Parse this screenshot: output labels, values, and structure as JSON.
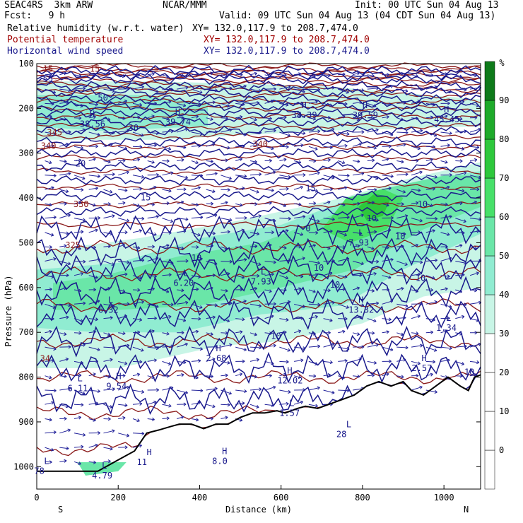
{
  "header": {
    "model": "SEAC4RS  3km ARW",
    "org": "NCAR/MMM",
    "init": "Init: 00 UTC Sun 04 Aug 13",
    "fcst": "Fcst:   9 h",
    "valid": "Valid: 09 UTC Sun 04 Aug 13 (04 CDT Sun 04 Aug 13)"
  },
  "fields": [
    {
      "name": "Relative humidity (w.r.t. water)",
      "xy": "XY= 132.0,117.9 to 208.7,474.0",
      "color": "#000000"
    },
    {
      "name": "Potential temperature",
      "xy": "XY= 132.0,117.9 to 208.7,474.0",
      "color": "#a00000"
    },
    {
      "name": "Horizontal wind speed",
      "xy": "XY= 132.0,117.9 to 208.7,474.0",
      "color": "#1a1a8c"
    }
  ],
  "chart_data": {
    "type": "heatmap",
    "xlabel": "Distance (km)",
    "ylabel": "Pressure (hPa)",
    "xlim": [
      0,
      1090
    ],
    "ylim": [
      1050,
      100
    ],
    "x_ticks": [
      0,
      200,
      400,
      600,
      800,
      1000
    ],
    "y_ticks": [
      100,
      200,
      300,
      400,
      500,
      600,
      700,
      800,
      900,
      1000
    ],
    "x_end_labels": {
      "left": "S",
      "right": "N"
    },
    "colorbar": {
      "unit": "%",
      "levels": [
        0,
        10,
        20,
        30,
        40,
        50,
        60,
        70,
        80,
        90
      ],
      "colors": [
        "#ffffff",
        "#ffffff",
        "#ffffff",
        "#ffffff",
        "#c8f5e6",
        "#90ecd1",
        "#6ae6a8",
        "#47e069",
        "#2ec83c",
        "#1eaa2a",
        "#0e7a1a"
      ]
    },
    "theta_labels": [
      {
        "text": "345",
        "x": 25,
        "p": 260
      },
      {
        "text": "340",
        "x": 10,
        "p": 290
      },
      {
        "text": "340",
        "x": 530,
        "p": 286
      },
      {
        "text": "330",
        "x": 90,
        "p": 420
      },
      {
        "text": "325",
        "x": 70,
        "p": 512
      },
      {
        "text": "34",
        "x": 8,
        "p": 765
      },
      {
        "text": "15",
        "x": 15,
        "p": 118
      },
      {
        "text": "15",
        "x": 130,
        "p": 118
      }
    ],
    "wind_labels": [
      {
        "text": "55",
        "x": 15,
        "p": 140
      },
      {
        "text": "50",
        "x": 150,
        "p": 183
      },
      {
        "text": "30",
        "x": 225,
        "p": 250
      },
      {
        "text": "20",
        "x": 95,
        "p": 330
      },
      {
        "text": "15",
        "x": 255,
        "p": 405
      },
      {
        "text": "15",
        "x": 660,
        "p": 385
      },
      {
        "text": "10",
        "x": 935,
        "p": 420
      },
      {
        "text": "10",
        "x": 810,
        "p": 452
      },
      {
        "text": "10",
        "x": 880,
        "p": 492
      },
      {
        "text": "10",
        "x": 380,
        "p": 540
      },
      {
        "text": "10",
        "x": 680,
        "p": 562
      },
      {
        "text": "10",
        "x": 720,
        "p": 600
      },
      {
        "text": "10",
        "x": 930,
        "p": 585
      },
      {
        "text": "10",
        "x": 575,
        "p": 715
      },
      {
        "text": "10",
        "x": 1050,
        "p": 795
      },
      {
        "text": "0",
        "x": 660,
        "p": 475
      }
    ],
    "extrema": [
      {
        "type": "H",
        "value": "38.56",
        "x": 130,
        "p": 235
      },
      {
        "type": "H",
        "value": "39.74",
        "x": 340,
        "p": 230
      },
      {
        "type": "H",
        "value": "38.39",
        "x": 650,
        "p": 215
      },
      {
        "type": "H",
        "value": "39.59",
        "x": 800,
        "p": 215
      },
      {
        "type": "H",
        "value": "45.45",
        "x": 1000,
        "p": 225
      },
      {
        "type": "L",
        "value": "7.93",
        "x": 790,
        "p": 500
      },
      {
        "type": "L",
        "value": "6.20",
        "x": 360,
        "p": 590
      },
      {
        "type": "L",
        "value": "7.93",
        "x": 550,
        "p": 587
      },
      {
        "type": "L",
        "value": "6.32",
        "x": 175,
        "p": 650
      },
      {
        "type": "H",
        "value": "13.32",
        "x": 790,
        "p": 650
      },
      {
        "type": "L",
        "value": "1.34",
        "x": 1005,
        "p": 690
      },
      {
        "type": "H",
        "value": "2.68",
        "x": 440,
        "p": 758
      },
      {
        "type": "L",
        "value": "6.11",
        "x": 100,
        "p": 825
      },
      {
        "type": "H",
        "value": "9.54",
        "x": 195,
        "p": 820
      },
      {
        "type": "H",
        "value": "12.02",
        "x": 615,
        "p": 808
      },
      {
        "type": "H",
        "value": "2.57",
        "x": 945,
        "p": 780
      },
      {
        "type": "L",
        "value": "1.57",
        "x": 620,
        "p": 880
      },
      {
        "type": "L",
        "value": "28",
        "x": 760,
        "p": 928
      },
      {
        "type": "H",
        "value": "8.0",
        "x": 455,
        "p": 988
      },
      {
        "type": "L",
        "value": "4.79",
        "x": 160,
        "p": 1020
      },
      {
        "type": "L",
        "value": "78",
        "x": 18,
        "p": 1010
      },
      {
        "type": "H",
        "value": "11",
        "x": 270,
        "p": 990
      }
    ],
    "terrain": [
      [
        0,
        1010
      ],
      [
        150,
        1010
      ],
      [
        200,
        985
      ],
      [
        240,
        965
      ],
      [
        270,
        925
      ],
      [
        300,
        918
      ],
      [
        330,
        910
      ],
      [
        350,
        905
      ],
      [
        380,
        905
      ],
      [
        410,
        915
      ],
      [
        440,
        905
      ],
      [
        470,
        905
      ],
      [
        500,
        890
      ],
      [
        530,
        880
      ],
      [
        560,
        880
      ],
      [
        590,
        875
      ],
      [
        610,
        880
      ],
      [
        640,
        870
      ],
      [
        660,
        865
      ],
      [
        690,
        870
      ],
      [
        720,
        860
      ],
      [
        750,
        850
      ],
      [
        780,
        840
      ],
      [
        810,
        820
      ],
      [
        840,
        810
      ],
      [
        870,
        820
      ],
      [
        900,
        810
      ],
      [
        920,
        830
      ],
      [
        950,
        840
      ],
      [
        980,
        820
      ],
      [
        1010,
        800
      ],
      [
        1040,
        820
      ],
      [
        1060,
        830
      ],
      [
        1075,
        800
      ],
      [
        1090,
        795
      ]
    ]
  }
}
